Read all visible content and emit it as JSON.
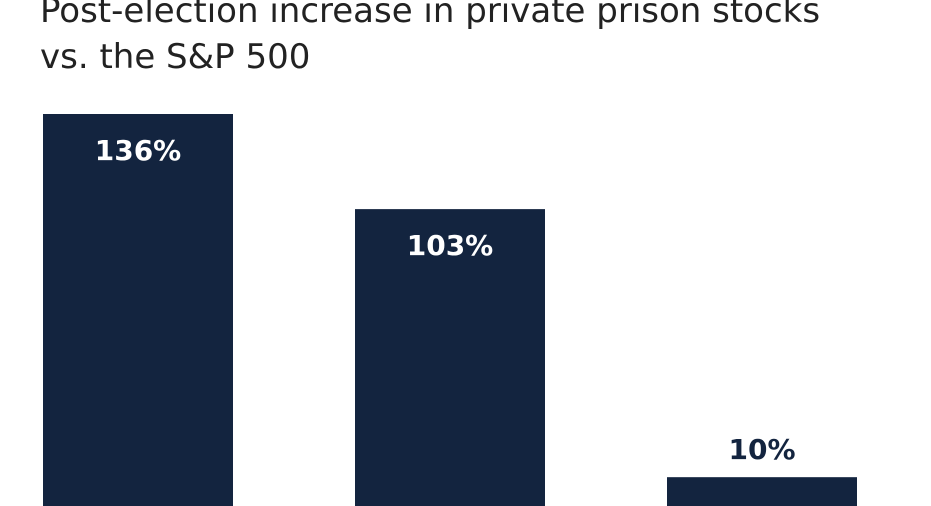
{
  "chart_data": {
    "type": "bar",
    "title": "Post-election increase in private prison stocks vs. the S&P 500",
    "title_lines": [
      "Post-election increase in private prison stocks",
      "vs. the S&P 500"
    ],
    "categories": [
      "",
      "",
      ""
    ],
    "values": [
      136,
      103,
      10
    ],
    "data_labels": [
      "136%",
      "103%",
      "10%"
    ],
    "unit": "%",
    "xlabel": "",
    "ylabel": "",
    "grid": false,
    "legend": "none",
    "colors": {
      "bar": "#13243f",
      "label_inside": "#ffffff",
      "label_outside": "#13243f",
      "title": "#222222"
    }
  }
}
